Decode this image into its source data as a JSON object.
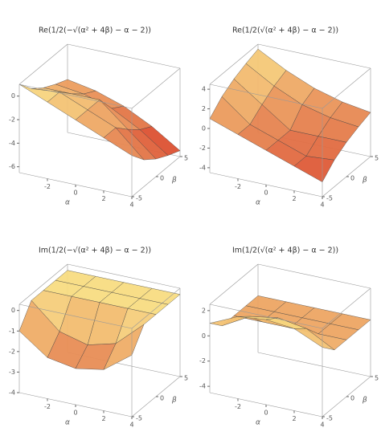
{
  "chart_data": [
    {
      "type": "surface",
      "title": "Re(1/2(−√(α² + 4β) − α − 2))",
      "xlabel": "α",
      "ylabel": "β",
      "x": [
        -4,
        -2,
        0,
        2,
        4
      ],
      "y": [
        -5,
        -2.5,
        0,
        2.5,
        5
      ],
      "z": [
        [
          1,
          -0.22,
          -1,
          -1.55,
          -2
        ],
        [
          0,
          0,
          -1,
          -1.87,
          -2.45
        ],
        [
          -1,
          -1,
          -1,
          -2.58,
          -3.24
        ],
        [
          -2,
          -2,
          -3,
          -3.87,
          -4.45
        ],
        [
          -3,
          -4.22,
          -5,
          -5.55,
          -6
        ]
      ],
      "xlim": [
        -4,
        4
      ],
      "ylim": [
        -5,
        5
      ],
      "zlim": [
        -6.5,
        1
      ],
      "xticks": [
        -2,
        0,
        2,
        4
      ],
      "yticks": [
        -5,
        0,
        5
      ],
      "zticks": [
        0,
        -2,
        -4,
        -6
      ],
      "colors": [
        "#d42a1c",
        "#fbe98a"
      ]
    },
    {
      "type": "surface",
      "title": "Re(1/2(√(α² + 4β) − α − 2))",
      "xlabel": "α",
      "ylabel": "β",
      "x": [
        -4,
        -2,
        0,
        2,
        4
      ],
      "y": [
        -5,
        -2.5,
        0,
        2.5,
        5
      ],
      "z": [
        [
          1,
          2.22,
          3,
          3.55,
          4
        ],
        [
          0,
          0,
          1,
          1.87,
          2.45
        ],
        [
          -1,
          -1,
          -1,
          0.58,
          1.24
        ],
        [
          -2,
          -2,
          -1,
          -0.13,
          0.45
        ],
        [
          -3,
          -1.78,
          -1,
          -0.45,
          0
        ]
      ],
      "xlim": [
        -4,
        4
      ],
      "ylim": [
        -5,
        5
      ],
      "zlim": [
        -4.5,
        4.5
      ],
      "xticks": [
        -2,
        0,
        2,
        4
      ],
      "yticks": [
        -5,
        0,
        5
      ],
      "zticks": [
        4,
        2,
        0,
        -2,
        -4
      ],
      "colors": [
        "#d42a1c",
        "#fbe98a"
      ]
    },
    {
      "type": "surface",
      "title": "Im(1/2(−√(α² + 4β) − α − 2))",
      "xlabel": "α",
      "ylabel": "β",
      "x": [
        -4,
        -2,
        0,
        2,
        4
      ],
      "y": [
        -5,
        -2.5,
        0,
        2.5,
        5
      ],
      "z": [
        [
          -1,
          0,
          0,
          0,
          0
        ],
        [
          -2,
          -1.22,
          0,
          0,
          0
        ],
        [
          -2.24,
          -1.58,
          0,
          0,
          0
        ],
        [
          -2,
          -1.22,
          0,
          0,
          0
        ],
        [
          -1,
          0,
          0,
          0,
          0
        ]
      ],
      "xlim": [
        -4,
        4
      ],
      "ylim": [
        -5,
        5
      ],
      "zlim": [
        -4,
        0.3
      ],
      "xticks": [
        -2,
        0,
        2,
        4
      ],
      "yticks": [
        -5,
        0,
        5
      ],
      "zticks": [
        0,
        -1,
        -2,
        -3,
        -4
      ],
      "colors": [
        "#d42a1c",
        "#fbe98a"
      ]
    },
    {
      "type": "surface",
      "title": "Im(1/2(√(α² + 4β) − α − 2))",
      "xlabel": "α",
      "ylabel": "β",
      "x": [
        -4,
        -2,
        0,
        2,
        4
      ],
      "y": [
        -5,
        -2.5,
        0,
        2.5,
        5
      ],
      "z": [
        [
          1,
          0,
          0,
          0,
          0
        ],
        [
          2,
          1.22,
          0,
          0,
          0
        ],
        [
          2.24,
          1.58,
          0,
          0,
          0
        ],
        [
          2,
          1.22,
          0,
          0,
          0
        ],
        [
          1,
          0,
          0,
          0,
          0
        ]
      ],
      "xlim": [
        -4,
        4
      ],
      "ylim": [
        -5,
        5
      ],
      "zlim": [
        -4.5,
        2.5
      ],
      "xticks": [
        -2,
        0,
        2,
        4
      ],
      "yticks": [
        -5,
        0,
        5
      ],
      "zticks": [
        2,
        0,
        -2,
        -4
      ],
      "colors": [
        "#d42a1c",
        "#fbe98a"
      ]
    }
  ]
}
